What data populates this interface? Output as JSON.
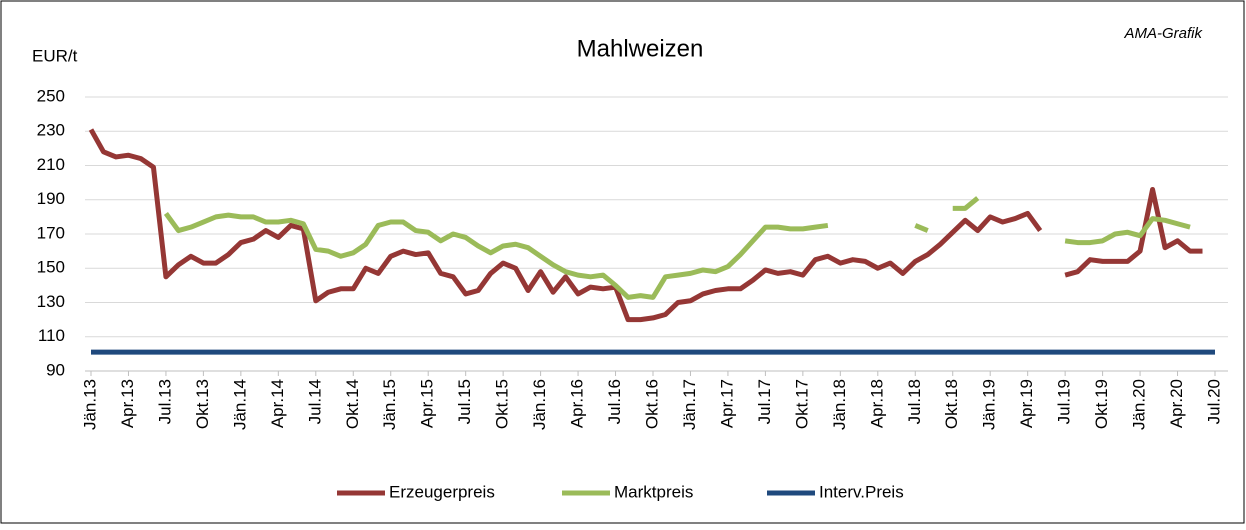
{
  "chart_data": {
    "type": "line",
    "title": "Mahlweizen",
    "annotation": "AMA-Grafik",
    "y_label": "EUR/t",
    "categories": [
      "Jän.13",
      null,
      null,
      "Apr.13",
      null,
      null,
      "Jul.13",
      null,
      null,
      "Okt.13",
      null,
      null,
      "Jän.14",
      null,
      null,
      "Apr.14",
      null,
      null,
      "Jul.14",
      null,
      null,
      "Okt.14",
      null,
      null,
      "Jän.15",
      null,
      null,
      "Apr.15",
      null,
      null,
      "Jul.15",
      null,
      null,
      "Okt.15",
      null,
      null,
      "Jän.16",
      null,
      null,
      "Apr.16",
      null,
      null,
      "Jul.16",
      null,
      null,
      "Okt.16",
      null,
      null,
      "Jän.17",
      null,
      null,
      "Apr.17",
      null,
      null,
      "Jul.17",
      null,
      null,
      "Okt.17",
      null,
      null,
      "Jän.18",
      null,
      null,
      "Apr.18",
      null,
      null,
      "Jul.18",
      null,
      null,
      "Okt.18",
      null,
      null,
      "Jän.19",
      null,
      null,
      "Apr.19",
      null,
      null,
      "Jul.19",
      null,
      null,
      "Okt.19",
      null,
      null,
      "Jän.20",
      null,
      null,
      "Apr.20",
      null,
      null,
      "Jul.20"
    ],
    "series": [
      {
        "name": "Erzeugerpreis",
        "color": "#953735",
        "values": [
          231,
          218,
          215,
          216,
          214,
          209,
          145,
          152,
          157,
          153,
          153,
          158,
          165,
          167,
          172,
          168,
          175,
          173,
          131,
          136,
          138,
          138,
          150,
          147,
          157,
          160,
          158,
          159,
          147,
          145,
          135,
          137,
          147,
          153,
          150,
          137,
          148,
          136,
          145,
          135,
          139,
          138,
          139,
          120,
          120,
          121,
          123,
          130,
          131,
          135,
          137,
          138,
          138,
          143,
          149,
          147,
          148,
          146,
          155,
          157,
          153,
          155,
          154,
          150,
          153,
          147,
          154,
          158,
          164,
          171,
          178,
          172,
          180,
          177,
          179,
          182,
          172,
          null,
          146,
          148,
          155,
          154,
          154,
          154,
          160,
          196,
          162,
          166,
          160,
          160,
          null
        ]
      },
      {
        "name": "Marktpreis",
        "color": "#9bbb59",
        "values": [
          null,
          null,
          null,
          null,
          null,
          null,
          182,
          172,
          174,
          177,
          180,
          181,
          180,
          180,
          177,
          177,
          178,
          176,
          161,
          160,
          157,
          159,
          164,
          175,
          177,
          177,
          172,
          171,
          166,
          170,
          168,
          163,
          159,
          163,
          164,
          162,
          157,
          152,
          148,
          146,
          145,
          146,
          140,
          133,
          134,
          133,
          145,
          146,
          147,
          149,
          148,
          151,
          158,
          166,
          174,
          174,
          173,
          173,
          174,
          175,
          null,
          null,
          null,
          null,
          null,
          null,
          175,
          172,
          null,
          185,
          185,
          191,
          null,
          null,
          null,
          null,
          null,
          null,
          166,
          165,
          165,
          166,
          170,
          171,
          169,
          179,
          178,
          176,
          174,
          null,
          null
        ]
      },
      {
        "name": "Interv.Preis",
        "color": "#1f497d",
        "values": [
          101,
          101,
          101,
          101,
          101,
          101,
          101,
          101,
          101,
          101,
          101,
          101,
          101,
          101,
          101,
          101,
          101,
          101,
          101,
          101,
          101,
          101,
          101,
          101,
          101,
          101,
          101,
          101,
          101,
          101,
          101,
          101,
          101,
          101,
          101,
          101,
          101,
          101,
          101,
          101,
          101,
          101,
          101,
          101,
          101,
          101,
          101,
          101,
          101,
          101,
          101,
          101,
          101,
          101,
          101,
          101,
          101,
          101,
          101,
          101,
          101,
          101,
          101,
          101,
          101,
          101,
          101,
          101,
          101,
          101,
          101,
          101,
          101,
          101,
          101,
          101,
          101,
          101,
          101,
          101,
          101,
          101,
          101,
          101,
          101,
          101,
          101,
          101,
          101,
          101,
          101
        ]
      }
    ],
    "ylim": [
      90,
      250
    ],
    "yticks": [
      90,
      110,
      130,
      150,
      170,
      190,
      210,
      230,
      250
    ],
    "grid": true,
    "legend": "bottom"
  }
}
